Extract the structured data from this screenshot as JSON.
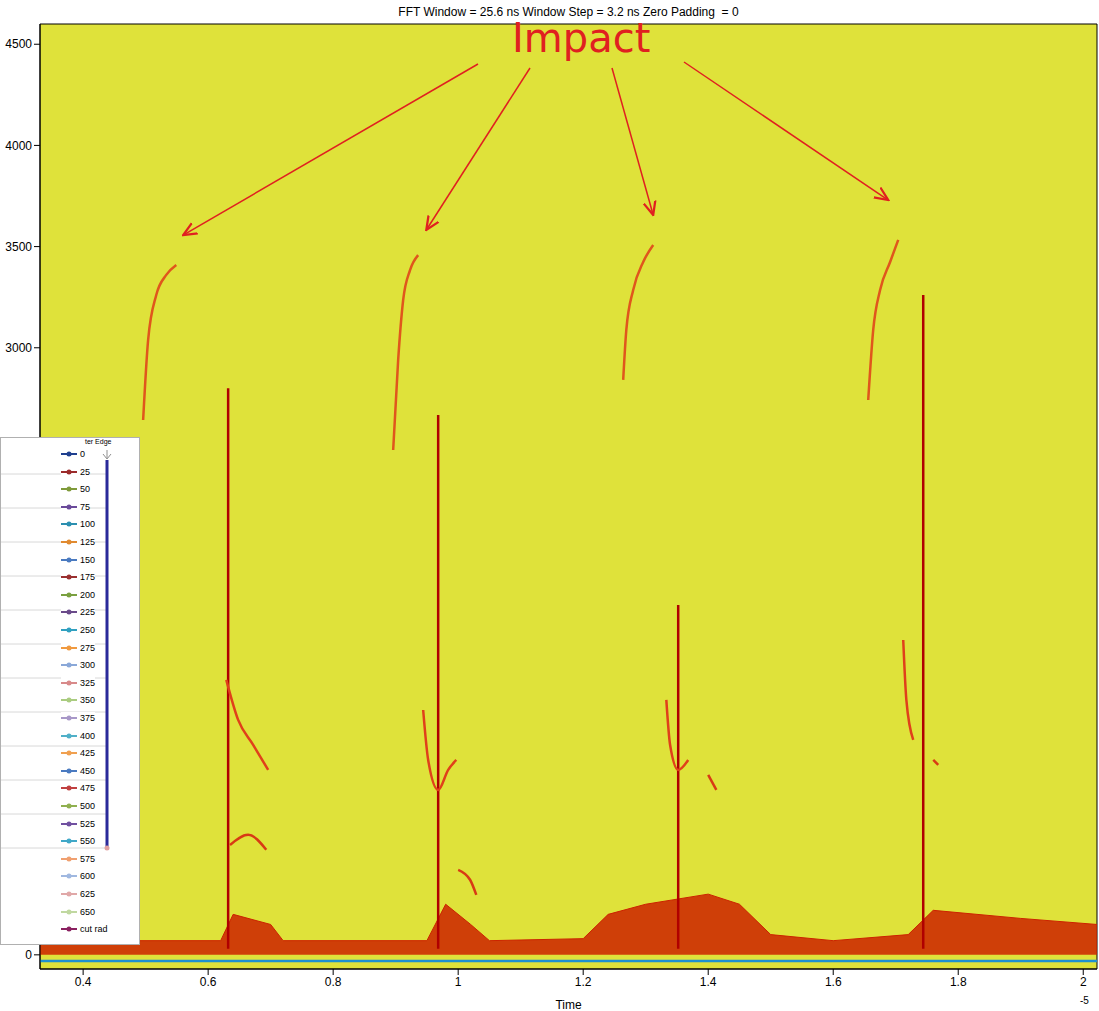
{
  "chart_data": {
    "type": "line",
    "title": "FFT Window = 25.6 ns Window Step = 3.2 ns Zero Padding  = 0",
    "x_label": "Time",
    "x_exponent_label": "-5",
    "xlim": [
      0.331,
      2.022
    ],
    "xticks": [
      0.4,
      0.6,
      0.8,
      1,
      1.2,
      1.4,
      1.6,
      1.8,
      2
    ],
    "ylim": [
      -70,
      4600
    ],
    "yticks": [
      0,
      3000,
      3500,
      4000,
      4500
    ],
    "grid": false,
    "annotations": [
      {
        "text": "Impact",
        "points": [
          [
            0.56,
            3557
          ],
          [
            0.949,
            3582
          ],
          [
            1.312,
            3656
          ],
          [
            1.688,
            3730
          ]
        ]
      }
    ],
    "series": [
      {
        "type": "area",
        "color": "#cc2200",
        "x": [
          0.331,
          0.62,
          0.64,
          0.7,
          0.72,
          0.95,
          0.98,
          1.02,
          1.05,
          1.2,
          1.24,
          1.3,
          1.4,
          1.45,
          1.5,
          1.6,
          1.72,
          1.76,
          1.9,
          2.022
        ],
        "values": [
          70,
          70,
          200,
          150,
          70,
          70,
          250,
          150,
          70,
          80,
          200,
          250,
          300,
          250,
          100,
          70,
          100,
          220,
          180,
          150
        ]
      },
      {
        "type": "line",
        "color": "#1e90d0",
        "x": [
          0.331,
          2.022
        ],
        "values": [
          -30,
          -30
        ]
      },
      {
        "type": "line",
        "color": "#e0561c",
        "x": [
          0.496,
          0.504,
          0.517,
          0.533,
          0.549
        ],
        "values": [
          2643,
          3039,
          3261,
          3360,
          3409
        ]
      },
      {
        "type": "line",
        "color": "#b00000",
        "x": [
          0.632,
          0.632
        ],
        "values": [
          2800,
          30
        ]
      },
      {
        "type": "line",
        "color": "#e0401a",
        "x": [
          0.629,
          0.648,
          0.672,
          0.696
        ],
        "values": [
          1359,
          1161,
          1038,
          914
        ]
      },
      {
        "type": "line",
        "color": "#d83a14",
        "x": [
          0.635,
          0.664,
          0.693
        ],
        "values": [
          543,
          593,
          519
        ]
      },
      {
        "type": "line",
        "color": "#e0561c",
        "x": [
          0.896,
          0.904,
          0.912,
          0.923,
          0.936
        ],
        "values": [
          2495,
          2940,
          3236,
          3384,
          3458
        ]
      },
      {
        "type": "line",
        "color": "#b00000",
        "x": [
          0.968,
          0.968
        ],
        "values": [
          2668,
          30
        ]
      },
      {
        "type": "line",
        "color": "#e0401a",
        "x": [
          0.944,
          0.952,
          0.968,
          0.984,
          0.997
        ],
        "values": [
          1210,
          963,
          815,
          914,
          963
        ]
      },
      {
        "type": "line",
        "color": "#d83a14",
        "x": [
          1.0,
          1.019,
          1.029
        ],
        "values": [
          420,
          371,
          296
        ]
      },
      {
        "type": "line",
        "color": "#e0561c",
        "x": [
          1.264,
          1.269,
          1.28,
          1.296,
          1.312
        ],
        "values": [
          2841,
          3088,
          3286,
          3424,
          3508
        ]
      },
      {
        "type": "line",
        "color": "#b00000",
        "x": [
          1.352,
          1.352
        ],
        "values": [
          1729,
          30
        ]
      },
      {
        "type": "line",
        "color": "#e0401a",
        "x": [
          1.333,
          1.339,
          1.352,
          1.368
        ],
        "values": [
          1260,
          1038,
          914,
          963
        ]
      },
      {
        "type": "line",
        "color": "#d83a14",
        "x": [
          1.4,
          1.413
        ],
        "values": [
          889,
          815
        ]
      },
      {
        "type": "line",
        "color": "#e0561c",
        "x": [
          1.656,
          1.664,
          1.675,
          1.691,
          1.704
        ],
        "values": [
          2742,
          3088,
          3286,
          3424,
          3533
        ]
      },
      {
        "type": "line",
        "color": "#b00000",
        "x": [
          1.744,
          1.744
        ],
        "values": [
          3261,
          30
        ]
      },
      {
        "type": "line",
        "color": "#e0401a",
        "x": [
          1.712,
          1.717,
          1.728
        ],
        "values": [
          1556,
          1260,
          1062
        ]
      },
      {
        "type": "line",
        "color": "#d83a14",
        "x": [
          1.76,
          1.768
        ],
        "values": [
          963,
          939
        ]
      }
    ],
    "inset_legend": {
      "title": "ter Edge",
      "entries": [
        {
          "name": "0",
          "color": "#1f3f8f"
        },
        {
          "name": "25",
          "color": "#9b2b2b"
        },
        {
          "name": "50",
          "color": "#7f9a3a"
        },
        {
          "name": "75",
          "color": "#6a4a9a"
        },
        {
          "name": "100",
          "color": "#2b8fb0"
        },
        {
          "name": "125",
          "color": "#e08a30"
        },
        {
          "name": "150",
          "color": "#4a7ac0"
        },
        {
          "name": "175",
          "color": "#9a3030"
        },
        {
          "name": "200",
          "color": "#7aa040"
        },
        {
          "name": "225",
          "color": "#6a4a8a"
        },
        {
          "name": "250",
          "color": "#30a0c0"
        },
        {
          "name": "275",
          "color": "#f09a40"
        },
        {
          "name": "300",
          "color": "#8aa8d8"
        },
        {
          "name": "325",
          "color": "#d88a8a"
        },
        {
          "name": "350",
          "color": "#aacc80"
        },
        {
          "name": "375",
          "color": "#a898c8"
        },
        {
          "name": "400",
          "color": "#50b0c8"
        },
        {
          "name": "425",
          "color": "#f0a050"
        },
        {
          "name": "450",
          "color": "#4a7ac0"
        },
        {
          "name": "475",
          "color": "#c04040"
        },
        {
          "name": "500",
          "color": "#90b050"
        },
        {
          "name": "525",
          "color": "#7050a0"
        },
        {
          "name": "550",
          "color": "#40a8c8"
        },
        {
          "name": "575",
          "color": "#f0a070"
        },
        {
          "name": "600",
          "color": "#a0b8e0"
        },
        {
          "name": "625",
          "color": "#e0a8a8"
        },
        {
          "name": "650",
          "color": "#c0d8a0"
        },
        {
          "name": "cut rad",
          "color": "#8a2060"
        }
      ]
    }
  }
}
